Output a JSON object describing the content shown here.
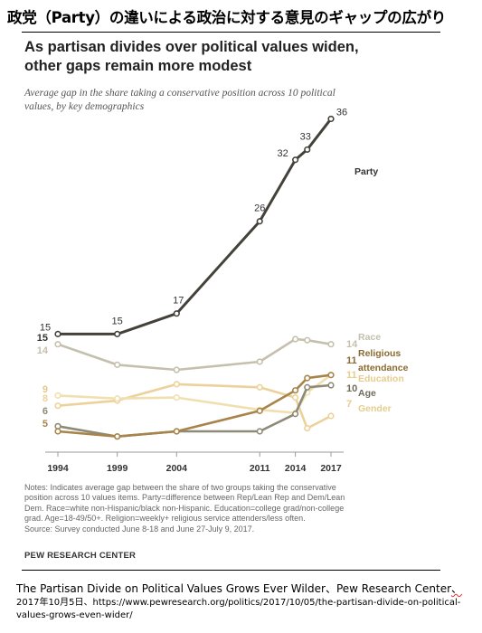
{
  "header": {
    "jp_title": "政党（Party）の違いによる政治に対する意見のギャップの広がり"
  },
  "chart_data": {
    "type": "line",
    "title": "As partisan divides over political values widen, other gaps remain more modest",
    "title_line1": "As partisan divides over political values widen,",
    "title_line2": "other gaps remain more modest",
    "subtitle": "Average gap in the share taking a conservative position across 10 political values, by key demographics",
    "subtitle_line1": "Average gap in the share taking a conservative position across 10 political",
    "subtitle_line2": "values, by key demographics",
    "xlabel": "",
    "ylabel": "",
    "x": [
      1994,
      1999,
      2004,
      2011,
      2014,
      2015,
      2017
    ],
    "x_tick_labels": [
      "1994",
      "1999",
      "2004",
      "2011",
      "2014",
      "2017"
    ],
    "ylim": [
      4,
      38
    ],
    "grid": false,
    "legend": "direct labels at right end of lines",
    "series": [
      {
        "name": "Race",
        "color": "#c5c0ad",
        "values": [
          14,
          12,
          11.5,
          12.3,
          14.5,
          14.4,
          14
        ],
        "start_label": "14",
        "end_label": "14"
      },
      {
        "name": "Religious attendance",
        "color": "#a8844a",
        "values": [
          5.5,
          5,
          5.5,
          7.5,
          9.5,
          10.7,
          11
        ],
        "start_label": "5",
        "end_label": "11"
      },
      {
        "name": "Education",
        "color": "#f1dfb0",
        "values": [
          9,
          8.7,
          8.8,
          7.6,
          7.3,
          9.3,
          11
        ],
        "start_label": "9",
        "end_label": "11"
      },
      {
        "name": "Age",
        "color": "#8e8a78",
        "values": [
          6,
          5,
          5.5,
          5.5,
          7.2,
          9.8,
          10
        ],
        "start_label": "6",
        "end_label": "10"
      },
      {
        "name": "Gender",
        "color": "#ecd29a",
        "values": [
          8,
          8.5,
          10.1,
          9.8,
          8.8,
          5.8,
          7
        ],
        "start_label": "8",
        "end_label": "7"
      },
      {
        "name": "Party",
        "color": "#43413a",
        "values": [
          15,
          15,
          17,
          26,
          32,
          33,
          36
        ],
        "point_labels": [
          "15",
          "15",
          "17",
          "26",
          "32",
          "33",
          "36"
        ]
      }
    ]
  },
  "notes": {
    "line1": "Notes: Indicates average gap between the share of two groups taking the conservative",
    "line2": "position across 10 values items. Party=difference between Rep/Lean Rep and Dem/Lean",
    "line3": "Dem. Race=white non-Hispanic/black non-Hispanic. Education=college grad/non-college",
    "line4": "grad. Age=18-49/50+. Religion=weekly+ religious service attenders/less often.",
    "line5": "Source: Survey conducted June 8-18 and June 27-July 9, 2017."
  },
  "source_org": "PEW RESEARCH CENTER",
  "citation": {
    "title": "The Partisan Divide on Political Values Grows Ever Wilder",
    "sep1": "、",
    "org": "Pew Research Center",
    "sep2": "、",
    "date": "2017年10月5日",
    "sep3": "、",
    "url": "https://www.pewresearch.org/politics/2017/10/05/the-partisan-divide-on-political-values-grows-even-wider/"
  }
}
